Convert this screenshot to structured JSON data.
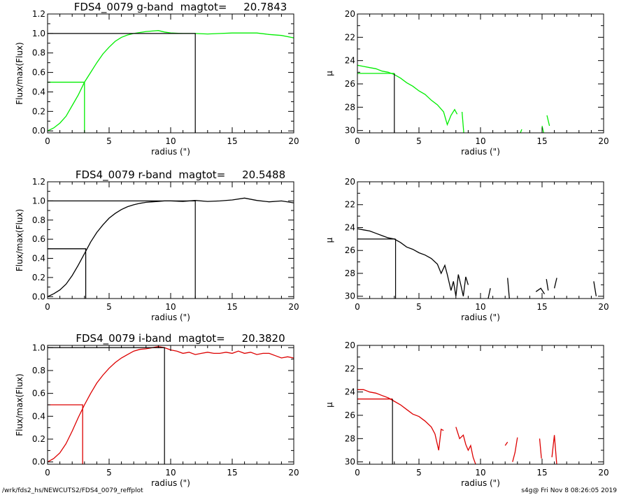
{
  "footer": {
    "path": "/wrk/fds2_hs/NEWCUTS2/FDS4_0079_reffplot",
    "stamp": "s4g@  Fri Nov  8 08:26:05 2019"
  },
  "chart_data": [
    {
      "type": "line",
      "panel": "g-flux",
      "title": "FDS4_0079 g-band  magtot=     20.7843",
      "xlabel": "radius (\")",
      "ylabel": "Flux/max(Flux)",
      "xlim": [
        0,
        20
      ],
      "ylim": [
        -0.02,
        1.2
      ],
      "xticks": [
        0,
        5,
        10,
        15,
        20
      ],
      "yticks": [
        0.0,
        0.2,
        0.4,
        0.6,
        0.8,
        1.0,
        1.2
      ],
      "ytick_labels": [
        "0.0",
        "0.2",
        "0.4",
        "0.6",
        "0.8",
        "1.0",
        "1.2"
      ],
      "color": "#00ee00",
      "series": [
        {
          "x": [
            0,
            0.5,
            1,
            1.5,
            2,
            2.5,
            3,
            3.5,
            4,
            4.5,
            5,
            5.5,
            6,
            6.5,
            7,
            7.5,
            8,
            8.5,
            9,
            9.5,
            10,
            11,
            12,
            13,
            14,
            15,
            16,
            17,
            18,
            19,
            20
          ],
          "y": [
            0,
            0.03,
            0.08,
            0.15,
            0.26,
            0.37,
            0.5,
            0.6,
            0.7,
            0.79,
            0.86,
            0.92,
            0.96,
            0.985,
            1.0,
            1.01,
            1.02,
            1.025,
            1.03,
            1.015,
            1.005,
            1.0,
            1.0,
            0.995,
            1.0,
            1.005,
            1.005,
            1.005,
            0.99,
            0.98,
            0.955
          ]
        }
      ],
      "guides": {
        "half": {
          "x": 3.0,
          "y": 0.5,
          "color": "#00ee00"
        },
        "total": {
          "x": 12.0,
          "y": 1.0,
          "color": "#000000"
        }
      }
    },
    {
      "type": "line",
      "panel": "g-mu",
      "xlabel": "radius (\")",
      "ylabel": "μ",
      "xlim": [
        0,
        20
      ],
      "ylim": [
        30.2,
        20
      ],
      "y_inverted": true,
      "xticks": [
        0,
        5,
        10,
        15,
        20
      ],
      "yticks": [
        20,
        22,
        24,
        26,
        28,
        30
      ],
      "color": "#00ee00",
      "series": [
        {
          "x": [
            0,
            0.5,
            1,
            1.5,
            2,
            2.5,
            3,
            3.5,
            4,
            4.5,
            5,
            5.5,
            6,
            6.5,
            7,
            7.3,
            7.6,
            7.9,
            8.1
          ],
          "y": [
            24.4,
            24.5,
            24.6,
            24.7,
            24.9,
            25.0,
            25.2,
            25.5,
            25.9,
            26.2,
            26.6,
            26.9,
            27.4,
            27.8,
            28.4,
            29.5,
            28.7,
            28.2,
            28.6
          ]
        },
        {
          "x": [
            8.5,
            8.65
          ],
          "y": [
            28.4,
            30.3
          ]
        },
        {
          "x": [
            13.2,
            13.35
          ],
          "y": [
            30.3,
            29.9
          ]
        },
        {
          "x": [
            15.0,
            15.15
          ],
          "y": [
            29.6,
            30.3
          ]
        },
        {
          "x": [
            15.4,
            15.6
          ],
          "y": [
            28.7,
            29.6
          ]
        }
      ],
      "guides": {
        "half": {
          "x": 3.0,
          "y": 25.1,
          "color": "#000000"
        },
        "level": {
          "y": 25.1,
          "color": "#00ee00"
        }
      }
    },
    {
      "type": "line",
      "panel": "r-flux",
      "title": "FDS4_0079 r-band  magtot=     20.5488",
      "xlabel": "radius (\")",
      "ylabel": "Flux/max(Flux)",
      "xlim": [
        0,
        20
      ],
      "ylim": [
        -0.02,
        1.2
      ],
      "xticks": [
        0,
        5,
        10,
        15,
        20
      ],
      "yticks": [
        0.0,
        0.2,
        0.4,
        0.6,
        0.8,
        1.0,
        1.2
      ],
      "ytick_labels": [
        "0.0",
        "0.2",
        "0.4",
        "0.6",
        "0.8",
        "1.0",
        "1.2"
      ],
      "color": "#000000",
      "series": [
        {
          "x": [
            0,
            0.5,
            1,
            1.5,
            2,
            2.5,
            3,
            3.5,
            4,
            4.5,
            5,
            5.5,
            6,
            6.5,
            7,
            7.5,
            8,
            8.5,
            9,
            9.5,
            10,
            11,
            12,
            13,
            14,
            15,
            16,
            17,
            18,
            19,
            20
          ],
          "y": [
            0,
            0.03,
            0.07,
            0.13,
            0.22,
            0.33,
            0.45,
            0.57,
            0.67,
            0.75,
            0.82,
            0.87,
            0.91,
            0.94,
            0.96,
            0.975,
            0.985,
            0.99,
            0.995,
            1.0,
            1.0,
            0.995,
            1.005,
            0.995,
            1.0,
            1.01,
            1.03,
            1.005,
            0.99,
            1.0,
            0.98
          ]
        }
      ],
      "guides": {
        "half": {
          "x": 3.1,
          "y": 0.5,
          "color": "#000000"
        },
        "total": {
          "x": 12.0,
          "y": 1.0,
          "color": "#000000"
        }
      }
    },
    {
      "type": "line",
      "panel": "r-mu",
      "xlabel": "radius (\")",
      "ylabel": "μ",
      "xlim": [
        0,
        20
      ],
      "ylim": [
        30.2,
        20
      ],
      "y_inverted": true,
      "xticks": [
        0,
        5,
        10,
        15,
        20
      ],
      "yticks": [
        20,
        22,
        24,
        26,
        28,
        30
      ],
      "color": "#000000",
      "series": [
        {
          "x": [
            0,
            0.5,
            1,
            1.5,
            2,
            2.5,
            3,
            3.5,
            4,
            4.5,
            5,
            5.5,
            6,
            6.5,
            6.8,
            7.1,
            7.3,
            7.6,
            7.8,
            8.0,
            8.2,
            8.4,
            8.6,
            8.8,
            9.0
          ],
          "y": [
            24.1,
            24.2,
            24.3,
            24.5,
            24.7,
            24.9,
            25.0,
            25.3,
            25.7,
            25.9,
            26.2,
            26.4,
            26.7,
            27.2,
            28.0,
            27.3,
            28.1,
            29.5,
            28.7,
            30.0,
            28.1,
            29.0,
            30.0,
            28.3,
            29.0
          ]
        },
        {
          "x": [
            10.6,
            10.8
          ],
          "y": [
            30.3,
            29.3
          ]
        },
        {
          "x": [
            12.2,
            12.35
          ],
          "y": [
            28.4,
            30.3
          ]
        },
        {
          "x": [
            14.5,
            14.9,
            15.2
          ],
          "y": [
            29.6,
            29.3,
            29.8
          ]
        },
        {
          "x": [
            15.35,
            15.5
          ],
          "y": [
            28.5,
            29.5
          ]
        },
        {
          "x": [
            16.0,
            16.2
          ],
          "y": [
            29.3,
            28.4
          ]
        },
        {
          "x": [
            19.2,
            19.4
          ],
          "y": [
            28.7,
            30.0
          ]
        }
      ],
      "guides": {
        "half": {
          "x": 3.1,
          "y": 25.0,
          "color": "#000000"
        },
        "level": {
          "y": 25.0,
          "color": "#000000"
        }
      }
    },
    {
      "type": "line",
      "panel": "i-flux",
      "title": "FDS4_0079 i-band  magtot=     20.3820",
      "xlabel": "radius (\")",
      "ylabel": "Flux/max(Flux)",
      "xlim": [
        0,
        20
      ],
      "ylim": [
        -0.02,
        1.02
      ],
      "xticks": [
        0,
        5,
        10,
        15,
        20
      ],
      "yticks": [
        0.0,
        0.2,
        0.4,
        0.6,
        0.8,
        1.0
      ],
      "ytick_labels": [
        "0.0",
        "0.2",
        "0.4",
        "0.6",
        "0.8",
        "1.0"
      ],
      "color": "#dd0000",
      "series": [
        {
          "x": [
            0,
            0.5,
            1,
            1.5,
            2,
            2.5,
            3,
            3.5,
            4,
            4.5,
            5,
            5.5,
            6,
            6.5,
            7,
            7.5,
            8,
            8.5,
            9,
            9.5,
            10,
            10.5,
            11,
            11.5,
            12,
            12.5,
            13,
            13.5,
            14,
            14.5,
            15,
            15.5,
            16,
            16.5,
            17,
            17.5,
            18,
            18.5,
            19,
            19.5,
            20
          ],
          "y": [
            0,
            0.03,
            0.08,
            0.16,
            0.27,
            0.39,
            0.5,
            0.6,
            0.69,
            0.76,
            0.82,
            0.87,
            0.91,
            0.94,
            0.97,
            0.985,
            0.99,
            1.0,
            1.01,
            1.0,
            0.98,
            0.97,
            0.95,
            0.96,
            0.94,
            0.95,
            0.96,
            0.95,
            0.95,
            0.96,
            0.95,
            0.97,
            0.95,
            0.96,
            0.94,
            0.95,
            0.95,
            0.93,
            0.91,
            0.92,
            0.91
          ]
        }
      ],
      "guides": {
        "half": {
          "x": 2.85,
          "y": 0.5,
          "color": "#dd0000"
        },
        "total": {
          "x": 9.5,
          "y": 1.0,
          "color": "#000000"
        }
      }
    },
    {
      "type": "line",
      "panel": "i-mu",
      "xlabel": "radius (\")",
      "ylabel": "μ",
      "xlim": [
        0,
        20
      ],
      "ylim": [
        30.2,
        20
      ],
      "y_inverted": true,
      "xticks": [
        0,
        5,
        10,
        15,
        20
      ],
      "yticks": [
        20,
        22,
        24,
        26,
        28,
        30
      ],
      "color": "#dd0000",
      "series": [
        {
          "x": [
            0,
            0.5,
            1,
            1.5,
            2,
            2.5,
            3,
            3.5,
            4,
            4.5,
            5,
            5.5,
            6,
            6.3,
            6.6,
            6.8,
            7.0
          ],
          "y": [
            23.8,
            23.8,
            24.0,
            24.1,
            24.3,
            24.5,
            24.8,
            25.1,
            25.5,
            25.9,
            26.1,
            26.5,
            27.0,
            27.6,
            29.0,
            27.2,
            27.3
          ]
        },
        {
          "x": [
            8.0,
            8.3,
            8.6,
            8.8,
            9.0,
            9.2,
            9.4,
            9.6
          ],
          "y": [
            27.0,
            28.0,
            27.7,
            28.5,
            29.0,
            28.6,
            29.6,
            30.2
          ]
        },
        {
          "x": [
            12.0,
            12.2
          ],
          "y": [
            28.6,
            28.3
          ]
        },
        {
          "x": [
            12.6,
            12.8,
            13.0
          ],
          "y": [
            30.0,
            29.2,
            27.9
          ]
        },
        {
          "x": [
            14.8,
            14.95
          ],
          "y": [
            28.0,
            29.7
          ]
        },
        {
          "x": [
            15.8,
            16.0,
            16.2
          ],
          "y": [
            29.6,
            27.7,
            30.3
          ]
        }
      ],
      "guides": {
        "half": {
          "x": 2.85,
          "y": 24.6,
          "color": "#000000"
        },
        "level": {
          "y": 24.6,
          "color": "#dd0000"
        }
      }
    }
  ]
}
